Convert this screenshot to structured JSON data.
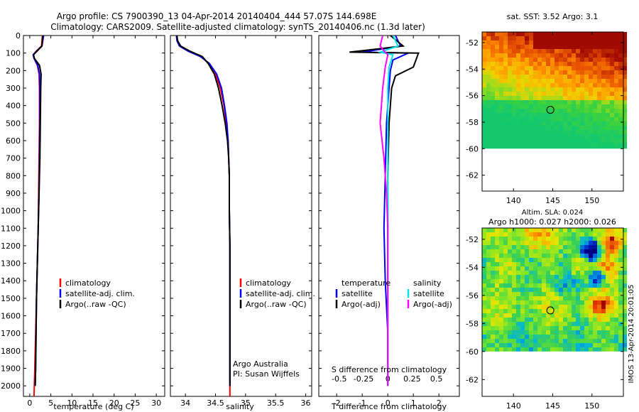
{
  "header": {
    "title_line1": "Argo profile: CS 7900390_13 04-Apr-2014 20140404_444 57.07S 144.698E",
    "title_line2": "Climatology: CARS2009. Satellite-adjusted climatology: synTS_20140406.nc (1.3d later)"
  },
  "credit": {
    "line1": "Argo Australia",
    "line2": "PI: Susan Wijffels"
  },
  "timestamp": "IMOS 13-Apr-2014 20:01:05",
  "colors": {
    "climatology": "#ff0000",
    "satellite": "#0000ff",
    "argo": "#000000",
    "sal_satellite": "#00e5ee",
    "sal_argo": "#ff00ff"
  },
  "chart_data": [
    {
      "id": "temperature",
      "type": "line",
      "xlabel": "temperature (deg C)",
      "ylabel": "",
      "xlim": [
        -1.5,
        32
      ],
      "ylim": [
        2060,
        0
      ],
      "xticks": [
        "0",
        "5",
        "10",
        "15",
        "20",
        "25",
        "30"
      ],
      "xtick_values": [
        0,
        5,
        10,
        15,
        20,
        25,
        30
      ],
      "yticks": [
        "0",
        "100",
        "200",
        "300",
        "400",
        "500",
        "600",
        "700",
        "800",
        "900",
        "1000",
        "1100",
        "1200",
        "1300",
        "1400",
        "1500",
        "1600",
        "1700",
        "1800",
        "1900",
        "2000"
      ],
      "ytick_values": [
        0,
        100,
        200,
        300,
        400,
        500,
        600,
        700,
        800,
        900,
        1000,
        1100,
        1200,
        1300,
        1400,
        1500,
        1600,
        1700,
        1800,
        1900,
        2000
      ],
      "legend": [
        "climatology",
        "satellite-adj. clim.",
        "Argo(..raw -QC)"
      ],
      "series": [
        {
          "name": "climatology",
          "x": [
            3.0,
            2.9,
            2.8,
            1.5,
            0.8,
            1.0,
            1.8,
            2.2,
            2.3,
            2.3,
            2.2,
            2.1,
            2.0,
            1.8,
            1.6,
            1.4,
            1.2,
            1.0
          ],
          "y": [
            0,
            30,
            60,
            90,
            110,
            130,
            170,
            220,
            300,
            500,
            700,
            900,
            1100,
            1300,
            1500,
            1700,
            1900,
            2060
          ]
        },
        {
          "name": "satellite-adj. clim.",
          "x": [
            3.3,
            3.1,
            2.9,
            1.6,
            0.8,
            1.0,
            1.9,
            2.3,
            2.4,
            2.4,
            2.3,
            2.2,
            2.0,
            1.8,
            1.6,
            1.5,
            1.4,
            1.3
          ],
          "y": [
            0,
            30,
            60,
            90,
            110,
            130,
            170,
            220,
            300,
            500,
            700,
            900,
            1100,
            1300,
            1500,
            1700,
            1900,
            2000
          ]
        },
        {
          "name": "Argo(..raw -QC)",
          "x": [
            3.1,
            3.0,
            2.9,
            1.7,
            0.9,
            1.1,
            2.3,
            2.7,
            2.6,
            2.5,
            2.4,
            2.2,
            2.0,
            1.8,
            1.6,
            1.5,
            1.4,
            1.3
          ],
          "y": [
            0,
            30,
            60,
            90,
            110,
            130,
            170,
            220,
            300,
            500,
            700,
            900,
            1100,
            1300,
            1500,
            1700,
            1900,
            2000
          ]
        }
      ]
    },
    {
      "id": "salinity",
      "type": "line",
      "xlabel": "salinity",
      "ylabel": "",
      "xlim": [
        33.75,
        36.1
      ],
      "ylim": [
        2060,
        0
      ],
      "xticks": [
        "34",
        "34.5",
        "35",
        "35.5",
        "36"
      ],
      "xtick_values": [
        34,
        34.5,
        35,
        35.5,
        36
      ],
      "legend": [
        "climatology",
        "satellite-adj. clim.",
        "Argo(..raw -QC)"
      ],
      "series": [
        {
          "name": "climatology",
          "x": [
            33.85,
            33.86,
            33.9,
            34.05,
            34.25,
            34.4,
            34.5,
            34.58,
            34.64,
            34.68,
            34.71,
            34.72,
            34.73,
            34.73,
            34.74,
            34.74,
            34.74,
            34.74
          ],
          "y": [
            0,
            30,
            60,
            90,
            120,
            160,
            220,
            300,
            400,
            500,
            600,
            700,
            800,
            1000,
            1200,
            1500,
            1800,
            2060
          ]
        },
        {
          "name": "satellite-adj. clim.",
          "x": [
            33.85,
            33.86,
            33.9,
            34.05,
            34.25,
            34.4,
            34.52,
            34.6,
            34.65,
            34.69,
            34.71,
            34.72,
            34.73,
            34.73,
            34.74,
            34.74,
            34.74,
            34.74
          ],
          "y": [
            0,
            30,
            60,
            90,
            120,
            160,
            220,
            300,
            400,
            500,
            600,
            700,
            800,
            1000,
            1200,
            1500,
            1800,
            2000
          ]
        },
        {
          "name": "Argo(..raw -QC)",
          "x": [
            33.86,
            33.87,
            33.92,
            34.08,
            34.28,
            34.38,
            34.48,
            34.55,
            34.61,
            34.66,
            34.7,
            34.72,
            34.73,
            34.73,
            34.74,
            34.74,
            34.74,
            34.74
          ],
          "y": [
            0,
            30,
            60,
            90,
            120,
            160,
            220,
            300,
            400,
            500,
            600,
            700,
            800,
            1000,
            1200,
            1500,
            1800,
            2000
          ]
        }
      ]
    },
    {
      "id": "difference",
      "type": "line",
      "xlabel": "T difference from climatology",
      "xlabel2": "S difference from climatology",
      "ylabel": "",
      "xlim": [
        -2.7,
        2.8
      ],
      "ylim": [
        2060,
        0
      ],
      "xticks": [
        "-2",
        "-1",
        "0",
        "1",
        "2"
      ],
      "xtick_values": [
        -2,
        -1,
        0,
        1,
        2
      ],
      "xticks_top": [
        "-0.5",
        "-0.25",
        "0",
        "0.25",
        "0.5"
      ],
      "xtick_top_values": [
        -1.9,
        -0.95,
        0,
        0.95,
        1.9
      ],
      "legend_groups": [
        {
          "title": "temperature",
          "items": [
            "satellite",
            "Argo(-adj)"
          ]
        },
        {
          "title": "salinity",
          "items": [
            "satellite",
            "Argo(-adj)"
          ]
        }
      ],
      "series": [
        {
          "name": "temperature satellite",
          "x": [
            0.3,
            0.5,
            -1.0,
            0.8,
            0.2,
            0.1,
            0.05,
            -0.05,
            -0.1,
            -0.15,
            -0.1,
            0.0,
            0.0,
            0.0
          ],
          "y": [
            0,
            60,
            95,
            100,
            140,
            200,
            300,
            500,
            800,
            1100,
            1400,
            1700,
            1900,
            2000
          ]
        },
        {
          "name": "temperature Argo(-adj)",
          "x": [
            0.1,
            0.6,
            -1.5,
            1.2,
            1.0,
            0.3,
            0.15,
            0.05,
            0.0,
            0.0,
            0.0,
            0.0,
            0.0,
            0.0
          ],
          "y": [
            0,
            60,
            95,
            100,
            180,
            230,
            300,
            500,
            800,
            1100,
            1400,
            1700,
            1900,
            2000
          ]
        },
        {
          "name": "salinity satellite",
          "x": [
            0.2,
            0.4,
            -0.3,
            0.2,
            0.05,
            0.0,
            0.0,
            0.0,
            0.0,
            0.0,
            0.0,
            0.0
          ],
          "y": [
            0,
            60,
            95,
            110,
            180,
            300,
            500,
            800,
            1100,
            1400,
            1700,
            2000
          ]
        },
        {
          "name": "salinity Argo(-adj)",
          "x": [
            -0.2,
            -0.3,
            -0.1,
            0.0,
            -0.1,
            -0.2,
            -0.3,
            -0.15,
            -0.05,
            0.0,
            0.0,
            0.0
          ],
          "y": [
            0,
            60,
            95,
            110,
            180,
            300,
            500,
            700,
            900,
            1100,
            1400,
            2000
          ]
        }
      ]
    },
    {
      "id": "sst-map",
      "type": "heatmap",
      "title": "sat. SST: 3.52 Argo: 3.1",
      "xlim": [
        136,
        154
      ],
      "ylim": [
        -63.2,
        -51.2
      ],
      "xticks": [
        "140",
        "145",
        "150"
      ],
      "xtick_values": [
        140,
        145,
        150
      ],
      "yticks": [
        "-52",
        "-54",
        "-56",
        "-58",
        "-60",
        "-62"
      ],
      "ytick_values": [
        -52,
        -54,
        -56,
        -58,
        -60,
        -62
      ],
      "data_south_limit": -60,
      "marker": {
        "lon": 144.698,
        "lat": -57.07
      }
    },
    {
      "id": "sla-map",
      "type": "heatmap",
      "title": "Altim. SLA: 0.024",
      "subtitle": "Argo h1000: 0.027 h2000: 0.026",
      "xlim": [
        136,
        154
      ],
      "ylim": [
        -63.2,
        -51.2
      ],
      "xticks": [
        "140",
        "145",
        "150"
      ],
      "xtick_values": [
        140,
        145,
        150
      ],
      "yticks": [
        "-52",
        "-54",
        "-56",
        "-58",
        "-60",
        "-62"
      ],
      "ytick_values": [
        -52,
        -54,
        -56,
        -58,
        -60,
        -62
      ],
      "data_south_limit": -60,
      "marker": {
        "lon": 144.698,
        "lat": -57.07
      }
    }
  ]
}
